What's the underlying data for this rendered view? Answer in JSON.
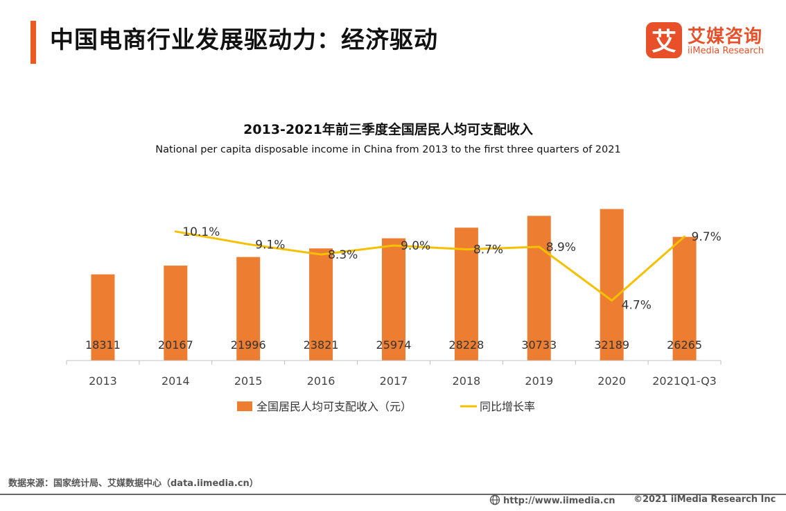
{
  "header": {
    "title": "中国电商行业发展驱动力：经济驱动",
    "logo_cn": "艾媒咨询",
    "logo_en": "iiMedia Research",
    "logo_glyph": "艾"
  },
  "colors": {
    "accent": "#ea5b24",
    "bar": "#ed7d31",
    "line": "#f5c000"
  },
  "chart_data": {
    "type": "bar",
    "title": "2013-2021年前三季度全国居民人均可支配收入",
    "subtitle": "National per capita disposable income in China from 2013 to the first three quarters of 2021",
    "categories": [
      "2013",
      "2014",
      "2015",
      "2016",
      "2017",
      "2018",
      "2019",
      "2020",
      "2021Q1-Q3"
    ],
    "series": [
      {
        "name": "全国居民人均可支配收入（元）",
        "type": "bar",
        "values": [
          18311,
          20167,
          21996,
          23821,
          25974,
          28228,
          30733,
          32189,
          26265
        ],
        "labels": [
          "18311",
          "20167",
          "21996",
          "23821",
          "25974",
          "28228",
          "30733",
          "32189",
          "26265"
        ]
      },
      {
        "name": "同比增长率",
        "type": "line",
        "values": [
          null,
          10.1,
          9.1,
          8.3,
          9.0,
          8.7,
          8.9,
          4.7,
          9.7
        ],
        "labels": [
          "",
          "10.1%",
          "9.1%",
          "8.3%",
          "9.0%",
          "8.7%",
          "8.9%",
          "4.7%",
          "9.7%"
        ]
      }
    ],
    "ylim_bar": [
      0,
      38000
    ],
    "ylim_line": [
      0,
      14
    ],
    "legend": "bottom",
    "grid": false
  },
  "footer": {
    "source": "数据来源：国家统计局、艾媒数据中心（data.iimedia.cn）",
    "url": "http://www.iimedia.cn",
    "copyright": "©2021  iiMedia Research  Inc"
  }
}
